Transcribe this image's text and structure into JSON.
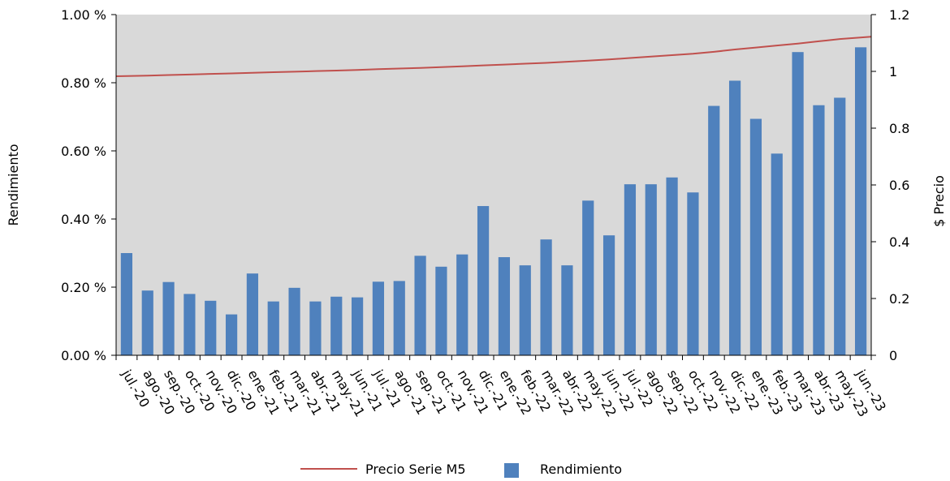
{
  "chart_data": {
    "type": "bar",
    "categories": [
      "jul.-20",
      "ago.-20",
      "sep.-20",
      "oct.-20",
      "nov.-20",
      "dic.-20",
      "ene.-21",
      "feb.-21",
      "mar.-21",
      "abr.-21",
      "may.-21",
      "jun.-21",
      "jul.-21",
      "ago.-21",
      "sep.-21",
      "oct.-21",
      "nov.-21",
      "dic.-21",
      "ene.-22",
      "feb.-22",
      "mar.-22",
      "abr.-22",
      "may.-22",
      "jun.-22",
      "jul.-22",
      "ago.-22",
      "sep.-22",
      "oct.-22",
      "nov.-22",
      "dic.-22",
      "ene.-23",
      "feb.-23",
      "mar.-23",
      "abr.-23",
      "may.-23",
      "jun.-23"
    ],
    "series": [
      {
        "name": "Rendimiento",
        "kind": "bar",
        "axis": "left",
        "color": "#4f81bd",
        "values": [
          0.3,
          0.19,
          0.215,
          0.18,
          0.16,
          0.12,
          0.24,
          0.158,
          0.198,
          0.158,
          0.172,
          0.17,
          0.216,
          0.218,
          0.292,
          0.26,
          0.296,
          0.438,
          0.288,
          0.264,
          0.34,
          0.264,
          0.454,
          0.352,
          0.502,
          0.502,
          0.522,
          0.478,
          0.732,
          0.806,
          0.694,
          0.592,
          0.89,
          0.734,
          0.756,
          0.904
        ]
      },
      {
        "name": "Precio Serie M5",
        "kind": "line",
        "axis": "right",
        "color": "#c0504d",
        "values": [
          0.983,
          0.985,
          0.987,
          0.989,
          0.991,
          0.993,
          0.995,
          0.997,
          0.999,
          1.001,
          1.003,
          1.005,
          1.008,
          1.01,
          1.012,
          1.015,
          1.018,
          1.021,
          1.024,
          1.027,
          1.03,
          1.034,
          1.038,
          1.042,
          1.047,
          1.052,
          1.057,
          1.062,
          1.069,
          1.077,
          1.084,
          1.091,
          1.098,
          1.106,
          1.114,
          1.122
        ]
      }
    ],
    "ylabel_left": "Rendimiento",
    "ylabel_right": "$ Precio",
    "ylim_left": [
      0,
      1.0
    ],
    "ylim_right": [
      0,
      1.2
    ],
    "yticks_left": [
      "0.00 %",
      "0.20 %",
      "0.40 %",
      "0.60 %",
      "0.80 %",
      "1.00 %"
    ],
    "yticks_right": [
      "0",
      "0.2",
      "0.4",
      "0.6",
      "0.8",
      "1",
      "1.2"
    ],
    "plot_background": "#d9d9d9",
    "grid": false,
    "legend_position": "bottom"
  }
}
